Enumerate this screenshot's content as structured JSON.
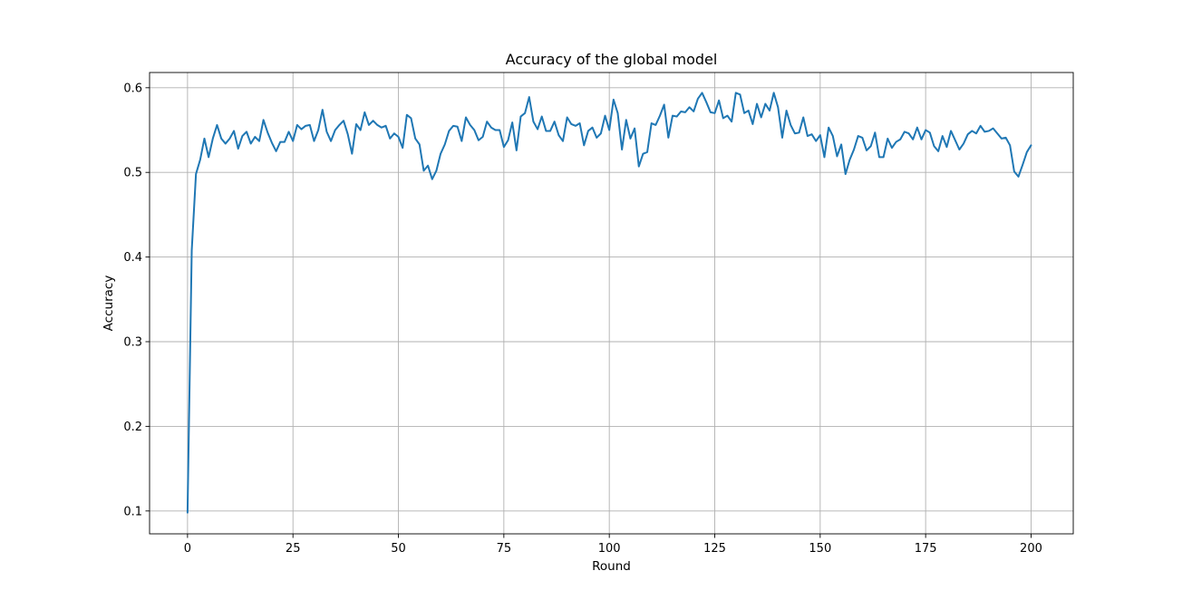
{
  "chart_data": {
    "type": "line",
    "title": "Accuracy of the global model",
    "xlabel": "Round",
    "ylabel": "Accuracy",
    "xlim": [
      -9,
      210
    ],
    "ylim": [
      0.073,
      0.618
    ],
    "xticks": [
      0,
      25,
      50,
      75,
      100,
      125,
      150,
      175,
      200
    ],
    "yticks": [
      0.1,
      0.2,
      0.3,
      0.4,
      0.5,
      0.6
    ],
    "ytick_labels": [
      "0.1",
      "0.2",
      "0.3",
      "0.4",
      "0.5",
      "0.6"
    ],
    "grid": true,
    "series": [
      {
        "color": "#1f77b4",
        "x": [
          0,
          1,
          2,
          3,
          4,
          5,
          6,
          7,
          8,
          9,
          10,
          11,
          12,
          13,
          14,
          15,
          16,
          17,
          18,
          19,
          20,
          21,
          22,
          23,
          24,
          25,
          26,
          27,
          28,
          29,
          30,
          31,
          32,
          33,
          34,
          35,
          36,
          37,
          38,
          39,
          40,
          41,
          42,
          43,
          44,
          45,
          46,
          47,
          48,
          49,
          50,
          51,
          52,
          53,
          54,
          55,
          56,
          57,
          58,
          59,
          60,
          61,
          62,
          63,
          64,
          65,
          66,
          67,
          68,
          69,
          70,
          71,
          72,
          73,
          74,
          75,
          76,
          77,
          78,
          79,
          80,
          81,
          82,
          83,
          84,
          85,
          86,
          87,
          88,
          89,
          90,
          91,
          92,
          93,
          94,
          95,
          96,
          97,
          98,
          99,
          100,
          101,
          102,
          103,
          104,
          105,
          106,
          107,
          108,
          109,
          110,
          111,
          112,
          113,
          114,
          115,
          116,
          117,
          118,
          119,
          120,
          121,
          122,
          123,
          124,
          125,
          126,
          127,
          128,
          129,
          130,
          131,
          132,
          133,
          134,
          135,
          136,
          137,
          138,
          139,
          140,
          141,
          142,
          143,
          144,
          145,
          146,
          147,
          148,
          149,
          150,
          151,
          152,
          153,
          154,
          155,
          156,
          157,
          158,
          159,
          160,
          161,
          162,
          163,
          164,
          165,
          166,
          167,
          168,
          169,
          170,
          171,
          172,
          173,
          174,
          175,
          176,
          177,
          178,
          179,
          180,
          181,
          182,
          183,
          184,
          185,
          186,
          187,
          188,
          189,
          190,
          191,
          192,
          193,
          194,
          195,
          196,
          197,
          198,
          199,
          200
        ],
        "values": [
          0.098,
          0.408,
          0.498,
          0.515,
          0.54,
          0.518,
          0.54,
          0.556,
          0.54,
          0.534,
          0.54,
          0.549,
          0.528,
          0.543,
          0.548,
          0.534,
          0.542,
          0.537,
          0.562,
          0.547,
          0.535,
          0.525,
          0.536,
          0.536,
          0.548,
          0.537,
          0.556,
          0.551,
          0.555,
          0.556,
          0.537,
          0.55,
          0.574,
          0.548,
          0.537,
          0.55,
          0.556,
          0.561,
          0.545,
          0.522,
          0.557,
          0.55,
          0.571,
          0.556,
          0.561,
          0.556,
          0.553,
          0.555,
          0.54,
          0.546,
          0.542,
          0.529,
          0.568,
          0.564,
          0.54,
          0.533,
          0.502,
          0.508,
          0.492,
          0.502,
          0.522,
          0.533,
          0.549,
          0.555,
          0.554,
          0.537,
          0.565,
          0.556,
          0.55,
          0.538,
          0.542,
          0.56,
          0.553,
          0.55,
          0.55,
          0.53,
          0.538,
          0.559,
          0.526,
          0.566,
          0.57,
          0.589,
          0.56,
          0.551,
          0.566,
          0.549,
          0.549,
          0.56,
          0.544,
          0.537,
          0.565,
          0.557,
          0.555,
          0.558,
          0.532,
          0.549,
          0.553,
          0.541,
          0.546,
          0.567,
          0.55,
          0.586,
          0.57,
          0.527,
          0.562,
          0.54,
          0.552,
          0.507,
          0.522,
          0.524,
          0.558,
          0.556,
          0.567,
          0.58,
          0.541,
          0.567,
          0.566,
          0.572,
          0.571,
          0.577,
          0.572,
          0.587,
          0.594,
          0.583,
          0.571,
          0.57,
          0.585,
          0.564,
          0.567,
          0.56,
          0.594,
          0.592,
          0.57,
          0.573,
          0.557,
          0.581,
          0.565,
          0.581,
          0.573,
          0.594,
          0.577,
          0.541,
          0.573,
          0.556,
          0.546,
          0.547,
          0.565,
          0.543,
          0.545,
          0.537,
          0.544,
          0.518,
          0.553,
          0.543,
          0.519,
          0.533,
          0.498,
          0.515,
          0.527,
          0.543,
          0.541,
          0.526,
          0.531,
          0.547,
          0.518,
          0.518,
          0.54,
          0.529,
          0.536,
          0.539,
          0.548,
          0.546,
          0.539,
          0.553,
          0.539,
          0.55,
          0.547,
          0.531,
          0.525,
          0.543,
          0.53,
          0.549,
          0.538,
          0.527,
          0.534,
          0.545,
          0.549,
          0.546,
          0.555,
          0.548,
          0.549,
          0.552,
          0.546,
          0.54,
          0.541,
          0.532,
          0.501,
          0.495,
          0.509,
          0.524,
          0.532
        ]
      }
    ]
  }
}
